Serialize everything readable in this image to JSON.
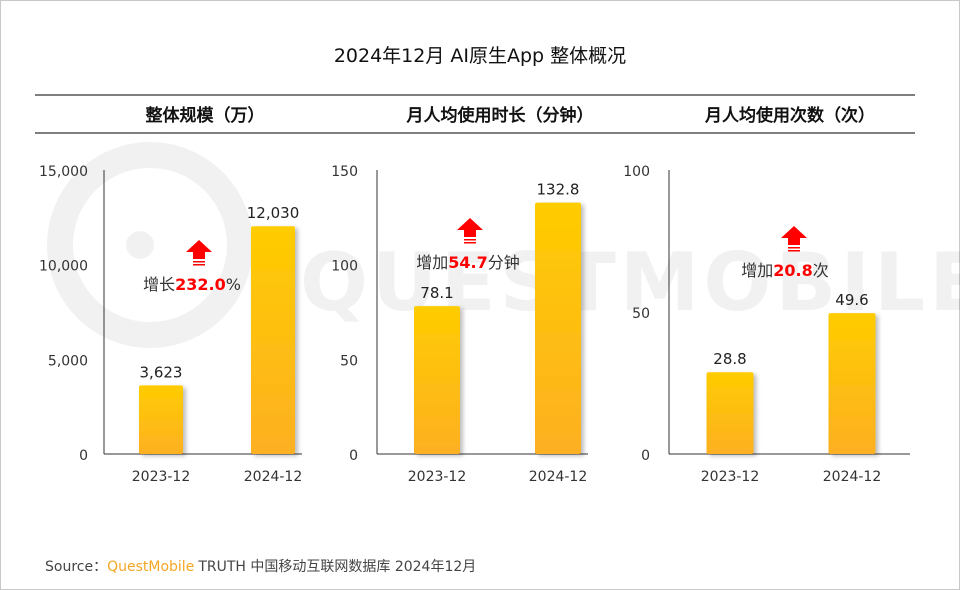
{
  "title": "2024年12月 AI原生App 整体概况",
  "source": {
    "label": "Source：",
    "brand": "QuestMobile",
    "text": "TRUTH 中国移动互联网数据库 2024年12月"
  },
  "watermark": "QUESTMOBILE",
  "colors": {
    "bar_top": "#FFCC00",
    "bar_bottom": "#FDB022",
    "highlight": "#FF0000",
    "brand": "#F5A623",
    "arrow": "#FF0000"
  },
  "chart_data": [
    {
      "type": "bar",
      "title": "整体规模（万）",
      "categories": [
        "2023-12",
        "2024-12"
      ],
      "values": [
        3623,
        12030
      ],
      "value_labels": [
        "3,623",
        "12,030"
      ],
      "ylim": [
        0,
        15000
      ],
      "yticks": [
        0,
        5000,
        10000,
        15000
      ],
      "ytick_labels": [
        "0",
        "5,000",
        "10,000",
        "15,000"
      ],
      "annotation": {
        "prefix": "增长",
        "value": "232.0",
        "suffix": "%",
        "icon": "up-arrow-icon"
      }
    },
    {
      "type": "bar",
      "title": "月人均使用时长（分钟）",
      "categories": [
        "2023-12",
        "2024-12"
      ],
      "values": [
        78.1,
        132.8
      ],
      "value_labels": [
        "78.1",
        "132.8"
      ],
      "ylim": [
        0,
        150
      ],
      "yticks": [
        0,
        50,
        100,
        150
      ],
      "ytick_labels": [
        "0",
        "50",
        "100",
        "150"
      ],
      "annotation": {
        "prefix": "增加",
        "value": "54.7",
        "suffix": "分钟",
        "icon": "up-arrow-icon"
      }
    },
    {
      "type": "bar",
      "title": "月人均使用次数（次）",
      "categories": [
        "2023-12",
        "2024-12"
      ],
      "values": [
        28.8,
        49.6
      ],
      "value_labels": [
        "28.8",
        "49.6"
      ],
      "ylim": [
        0,
        100
      ],
      "yticks": [
        0,
        50,
        100
      ],
      "ytick_labels": [
        "0",
        "50",
        "100"
      ],
      "annotation": {
        "prefix": "增加",
        "value": "20.8",
        "suffix": "次",
        "icon": "up-arrow-icon"
      }
    }
  ]
}
